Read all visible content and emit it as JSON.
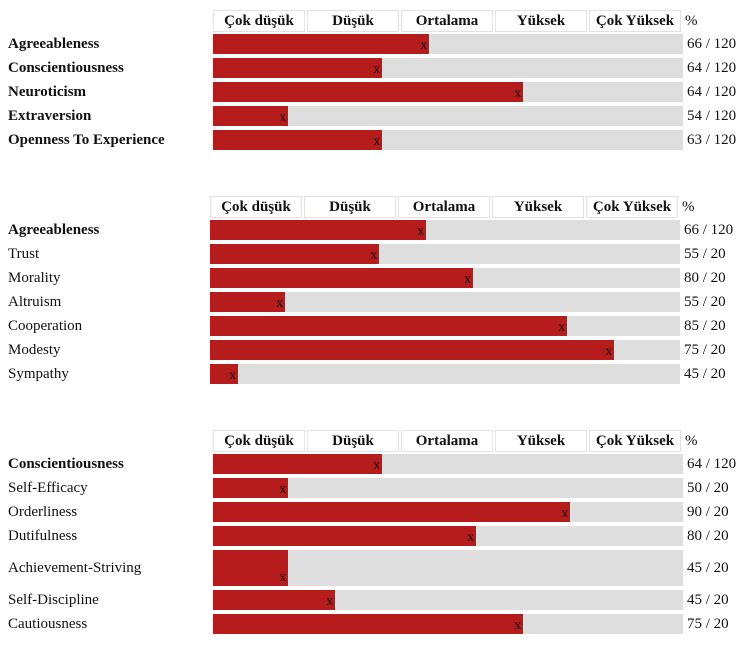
{
  "chart_data": [
    {
      "type": "bar",
      "headers": [
        "Çok düşük",
        "Düşük",
        "Ortalama",
        "Yüksek",
        "Çok Yüksek"
      ],
      "percent_label": "%",
      "marker": "x",
      "rows": [
        {
          "label": "Agreeableness",
          "bold": true,
          "value": 46,
          "score": "66 / 120"
        },
        {
          "label": "Conscientiousness",
          "bold": true,
          "value": 36,
          "score": "64 / 120"
        },
        {
          "label": "Neuroticism",
          "bold": true,
          "value": 66,
          "score": "64 / 120"
        },
        {
          "label": "Extraversion",
          "bold": true,
          "value": 16,
          "score": "54 / 120"
        },
        {
          "label": "Openness To Experience",
          "bold": true,
          "value": 36,
          "score": "63 / 120"
        }
      ]
    },
    {
      "type": "bar",
      "headers": [
        "Çok düşük",
        "Düşük",
        "Ortalama",
        "Yüksek",
        "Çok Yüksek"
      ],
      "percent_label": "%",
      "marker": "x",
      "rows": [
        {
          "label": "Agreeableness",
          "bold": true,
          "value": 46,
          "score": "66 / 120"
        },
        {
          "label": "Trust",
          "bold": false,
          "value": 36,
          "score": "55 / 20"
        },
        {
          "label": "Morality",
          "bold": false,
          "value": 56,
          "score": "80 / 20"
        },
        {
          "label": "Altruism",
          "bold": false,
          "value": 16,
          "score": "55 / 20"
        },
        {
          "label": "Cooperation",
          "bold": false,
          "value": 76,
          "score": "85 / 20"
        },
        {
          "label": "Modesty",
          "bold": false,
          "value": 86,
          "score": "75 / 20"
        },
        {
          "label": "Sympathy",
          "bold": false,
          "value": 6,
          "score": "45 / 20"
        }
      ]
    },
    {
      "type": "bar",
      "headers": [
        "Çok düşük",
        "Düşük",
        "Ortalama",
        "Yüksek",
        "Çok Yüksek"
      ],
      "percent_label": "%",
      "marker": "x",
      "rows": [
        {
          "label": "Conscientiousness",
          "bold": true,
          "value": 36,
          "score": "64 / 120"
        },
        {
          "label": "Self-Efficacy",
          "bold": false,
          "value": 16,
          "score": "50 / 20"
        },
        {
          "label": "Orderliness",
          "bold": false,
          "value": 76,
          "score": "90 / 20"
        },
        {
          "label": "Dutifulness",
          "bold": false,
          "value": 56,
          "score": "80 / 20"
        },
        {
          "label": "Achievement-Striving",
          "bold": false,
          "value": 16,
          "score": "45 / 20"
        },
        {
          "label": "Self-Discipline",
          "bold": false,
          "value": 26,
          "score": "45 / 20"
        },
        {
          "label": "Cautiousness",
          "bold": false,
          "value": 66,
          "score": "75 / 20"
        }
      ]
    }
  ]
}
